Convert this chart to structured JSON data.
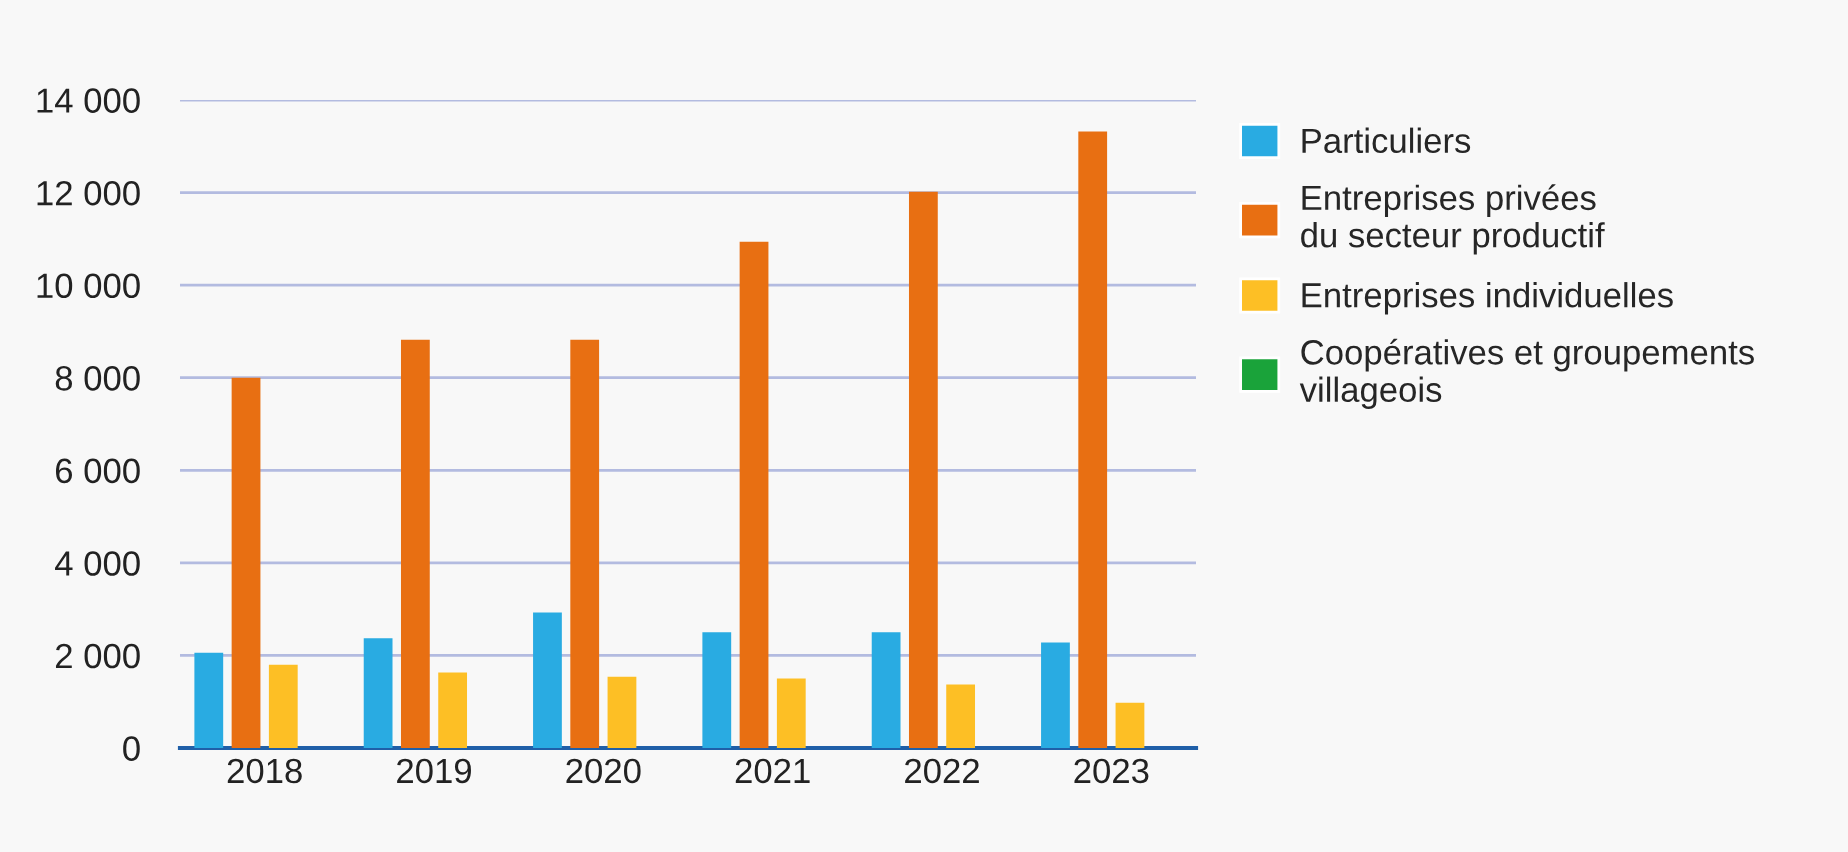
{
  "chart_data": {
    "type": "bar",
    "categories": [
      "2018",
      "2019",
      "2020",
      "2021",
      "2022",
      "2023"
    ],
    "series": [
      {
        "name": "Particuliers",
        "color": "#29abe2",
        "values": [
          2060,
          2370,
          2930,
          2500,
          2500,
          2280
        ]
      },
      {
        "name": "Entreprises privées\ndu secteur productif",
        "color": "#e86f12",
        "values": [
          8000,
          8820,
          8820,
          10940,
          12020,
          13320
        ]
      },
      {
        "name": "Entreprises individuelles",
        "color": "#fdbf25",
        "values": [
          1800,
          1630,
          1540,
          1500,
          1370,
          980
        ]
      },
      {
        "name": "Coopératives et groupements\nvillageois",
        "color": "#1aa33a",
        "values": [
          null,
          null,
          null,
          null,
          null,
          null
        ]
      }
    ],
    "ylim": [
      0,
      14000
    ],
    "yticks": [
      0,
      {
        "value": 2000,
        "label": "2 000"
      },
      {
        "value": 4000,
        "label": "4 000"
      },
      {
        "value": 6000,
        "label": "6 000"
      },
      {
        "value": 8000,
        "label": "8 000"
      },
      {
        "value": 10000,
        "label": "10 000"
      },
      {
        "value": 12000,
        "label": "12 000"
      },
      {
        "value": 14000,
        "label": "14 000"
      }
    ],
    "grid": "y",
    "legend": "right"
  }
}
